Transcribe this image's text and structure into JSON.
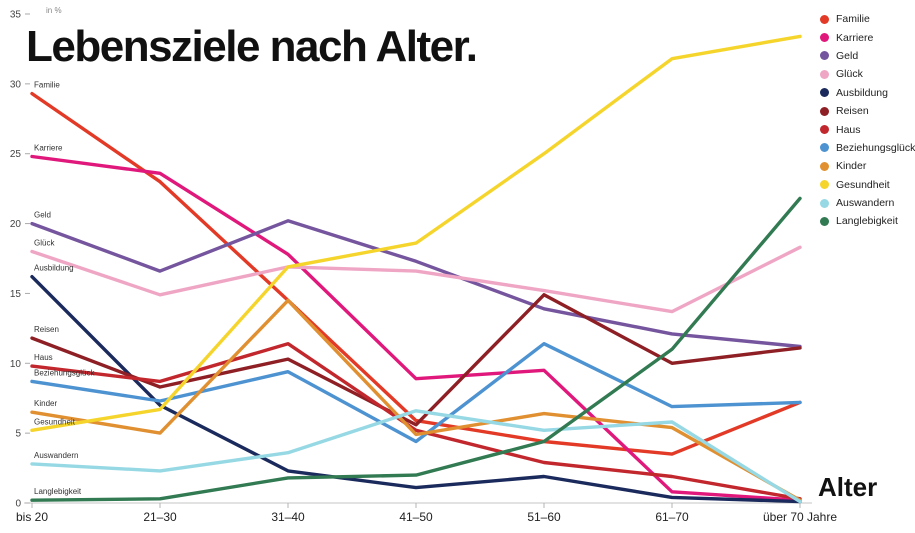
{
  "title": "Lebensziele nach Alter.",
  "y_axis_unit": "in %",
  "x_axis_title": "Alter",
  "chart_data": {
    "type": "line",
    "title": "Lebensziele nach Alter.",
    "xlabel": "Alter",
    "ylabel": "in %",
    "ylim": [
      0,
      35
    ],
    "yticks": [
      0,
      5,
      10,
      15,
      20,
      25,
      30,
      35
    ],
    "grid": false,
    "legend_position": "top-right",
    "categories": [
      "bis 20",
      "21–30",
      "31–40",
      "41–50",
      "51–60",
      "61–70",
      "über 70 Jahre"
    ],
    "series": [
      {
        "name": "Familie",
        "color": "#e23a26",
        "values": [
          29.3,
          23.0,
          14.5,
          5.9,
          4.4,
          3.5,
          7.2
        ]
      },
      {
        "name": "Karriere",
        "color": "#e0187b",
        "values": [
          24.8,
          23.6,
          17.8,
          8.9,
          9.5,
          0.8,
          0.2
        ]
      },
      {
        "name": "Geld",
        "color": "#75559d",
        "values": [
          20.0,
          16.6,
          20.2,
          17.3,
          13.9,
          12.1,
          11.2
        ]
      },
      {
        "name": "Glück",
        "color": "#efa6c5",
        "values": [
          18.0,
          14.9,
          16.9,
          16.6,
          15.2,
          13.7,
          18.3
        ]
      },
      {
        "name": "Ausbildung",
        "color": "#1b2a5c",
        "values": [
          16.2,
          7.0,
          2.3,
          1.1,
          1.9,
          0.4,
          0.1
        ]
      },
      {
        "name": "Reisen",
        "color": "#8e1f24",
        "values": [
          11.8,
          8.3,
          10.3,
          5.6,
          14.9,
          10.0,
          11.1
        ]
      },
      {
        "name": "Haus",
        "color": "#c2272d",
        "values": [
          9.8,
          8.7,
          11.4,
          5.2,
          2.9,
          1.9,
          0.3
        ]
      },
      {
        "name": "Beziehungsglück",
        "color": "#4e93d1",
        "values": [
          8.7,
          7.3,
          9.4,
          4.4,
          11.4,
          6.9,
          7.2
        ]
      },
      {
        "name": "Kinder",
        "color": "#e09031",
        "values": [
          6.5,
          5.0,
          14.5,
          4.9,
          6.4,
          5.4,
          0.2
        ]
      },
      {
        "name": "Gesundheit",
        "color": "#f5d52c",
        "values": [
          5.2,
          6.7,
          16.9,
          18.6,
          25.0,
          31.8,
          33.4
        ]
      },
      {
        "name": "Auswandern",
        "color": "#96d9e4",
        "values": [
          2.8,
          2.3,
          3.6,
          6.6,
          5.2,
          5.8,
          0.1
        ]
      },
      {
        "name": "Langlebigkeit",
        "color": "#317a52",
        "values": [
          0.2,
          0.3,
          1.8,
          2.0,
          4.4,
          11.0,
          21.8
        ]
      }
    ]
  }
}
